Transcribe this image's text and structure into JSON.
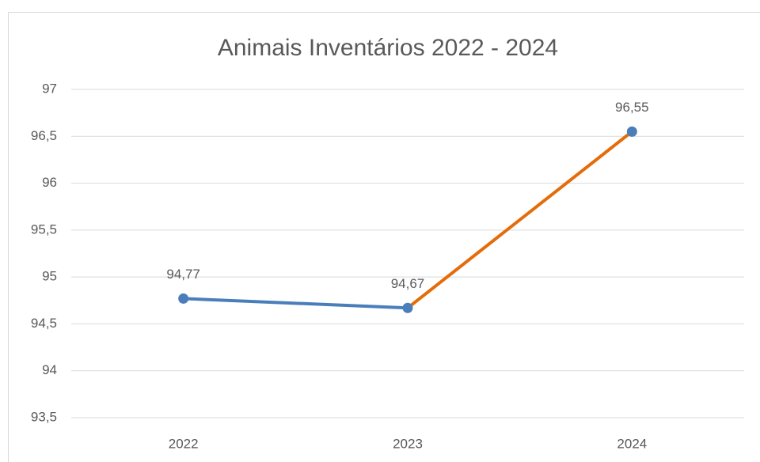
{
  "chart_data": {
    "type": "line",
    "title": "Animais Inventários 2022 - 2024",
    "categories": [
      "2022",
      "2023",
      "2024"
    ],
    "series": [
      {
        "name": "Animais Inventários",
        "color": "#4a7ebb",
        "segment_colors": [
          "#4a7ebb",
          "#e46c0a"
        ],
        "values": [
          94.77,
          94.67,
          96.55
        ],
        "value_labels": [
          "94,77",
          "94,67",
          "96,55"
        ]
      }
    ],
    "ylim": [
      93.5,
      97
    ],
    "yticks": [
      {
        "value": 93.5,
        "label": "93,5"
      },
      94,
      {
        "value": 94.5,
        "label": "94,5"
      },
      95,
      {
        "value": 95.5,
        "label": "95,5"
      },
      96,
      {
        "value": 96.5,
        "label": "96,5"
      },
      97
    ],
    "grid": true
  }
}
